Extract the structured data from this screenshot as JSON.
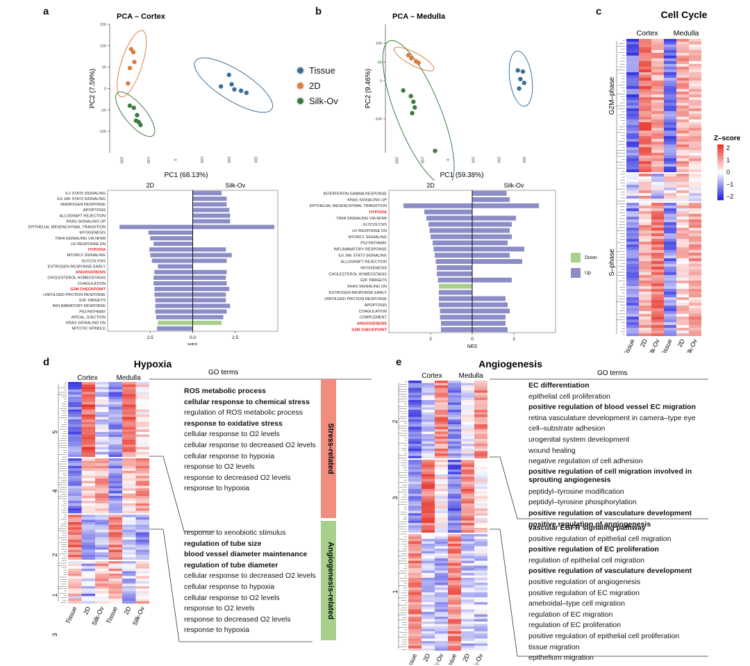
{
  "figure": {
    "panel_labels": [
      "a",
      "b",
      "c",
      "d",
      "e"
    ],
    "legend": {
      "items": [
        {
          "label": "Tissue",
          "color": "#3a6d97"
        },
        {
          "label": "2D",
          "color": "#e07a3c"
        },
        {
          "label": "Silk-Ov",
          "color": "#3b7b3d"
        }
      ]
    },
    "gsea_legend": {
      "items": [
        {
          "label": "Down",
          "color": "#a9cf8d"
        },
        {
          "label": "Up",
          "color": "#8c8cc6"
        }
      ]
    }
  },
  "chart_data": [
    {
      "id": "pca_cortex",
      "type": "scatter",
      "title": "PCA – Cortex",
      "xlabel": "PC1 (68.13%)",
      "ylabel": "PC2 (7.59%)",
      "xlim": [
        -240,
        330
      ],
      "ylim": [
        -150,
        150
      ],
      "xticks": [
        "-200",
        "-100",
        "0",
        "100",
        "200",
        "300"
      ],
      "yticks": [
        "150",
        "100",
        "50",
        "0",
        "-50",
        "-100"
      ],
      "series": [
        {
          "name": "Tissue",
          "points": [
            [
              175,
              5
            ],
            [
              205,
              32
            ],
            [
              215,
              10
            ],
            [
              225,
              -2
            ],
            [
              250,
              -5
            ],
            [
              270,
              -10
            ]
          ]
        },
        {
          "name": "2D",
          "points": [
            [
              -160,
              92
            ],
            [
              -152,
              85
            ],
            [
              -148,
              62
            ],
            [
              -165,
              48
            ],
            [
              -172,
              12
            ]
          ]
        },
        {
          "name": "Silk-Ov",
          "points": [
            [
              -165,
              -40
            ],
            [
              -150,
              -45
            ],
            [
              -138,
              -62
            ],
            [
              -142,
              -75
            ],
            [
              -132,
              -78
            ],
            [
              -125,
              -85
            ]
          ]
        }
      ]
    },
    {
      "id": "pca_medulla",
      "type": "scatter",
      "title": "PCA – Medulla",
      "xlabel": "PC1 (59.38%)",
      "ylabel": "PC2 (9.46%)",
      "xlim": [
        -240,
        360
      ],
      "ylim": [
        -190,
        150
      ],
      "xticks": [
        "-200",
        "-100",
        "0",
        "100",
        "200",
        "300"
      ],
      "yticks": [
        "100",
        "50",
        "0",
        "-100"
      ],
      "series": [
        {
          "name": "Tissue",
          "points": [
            [
              280,
              28
            ],
            [
              300,
              25
            ],
            [
              290,
              5
            ],
            [
              305,
              -5
            ],
            [
              285,
              -20
            ]
          ]
        },
        {
          "name": "2D",
          "points": [
            [
              -150,
              68
            ],
            [
              -138,
              60
            ],
            [
              -120,
              52
            ],
            [
              -110,
              48
            ]
          ]
        },
        {
          "name": "Silk-Ov",
          "points": [
            [
              -170,
              -25
            ],
            [
              -140,
              -40
            ],
            [
              -130,
              -55
            ],
            [
              -125,
              -70
            ],
            [
              -135,
              -85
            ],
            [
              -45,
              -185
            ]
          ]
        }
      ]
    },
    {
      "id": "gsea_cortex",
      "type": "bar",
      "orientation": "horizontal",
      "left_label": "2D",
      "right_label": "Silk-Ov",
      "xlabel": "NES",
      "xlim": [
        -5,
        5
      ],
      "xticks": [
        "2.5",
        "0.0",
        "2.5"
      ],
      "categories": [
        "IL2 STAT5 SIGNALING",
        "IL6 JAK STAT3 SIGNALING",
        "ANDROGEN RESPONSE",
        "APOPTOSIS",
        "ALLOGRAFT REJECTION",
        "KRAS SIGNALING UP",
        "EPITHELIAL MESENCHYMAL TRANSITION",
        "MYOGENESIS",
        "TNFA SIGNALING VIA NFKB",
        "UV RESPONSE DN",
        "HYPOXIA",
        "MTORC1 SIGNALING",
        "GLYCOLYSIS",
        "ESTROGEN RESPONSE EARLY",
        "ANGIOGENESIS",
        "CHOLESTEROL HOMEOSTASIS",
        "COAGULATION",
        "G2M CHECKPOINT",
        "UNFOLDED PROTEIN RESPONSE",
        "E2F TARGETS",
        "INFLAMMATORY RESPONSE",
        "P53 PATHWAY",
        "APICAL JUNCTION",
        "KRAS SIGNALING DN",
        "MITOTIC SPINDLE"
      ],
      "highlight": [
        "HYPOXIA",
        "ANGIOGENESIS",
        "G2M CHECKPOINT"
      ],
      "values": [
        1.7,
        2.0,
        2.0,
        2.15,
        2.2,
        2.2,
        4.8,
        -2.6,
        -2.5,
        -2.3,
        1.95,
        2.3,
        2.0,
        -2.05,
        2.0,
        1.95,
        2.0,
        2.15,
        1.95,
        1.95,
        2.2,
        2.0,
        1.8,
        1.7,
        -2.1
      ],
      "left_values": [
        0,
        0,
        0,
        0,
        0,
        0,
        -4.3,
        0,
        0,
        0,
        -2.55,
        -2.5,
        -2.4,
        0,
        -2.25,
        -2.3,
        -2.3,
        -2.25,
        -2.25,
        -2.2,
        -2.2,
        -2.2,
        -2.15,
        -2.05,
        0
      ],
      "down_rows": [
        "KRAS SIGNALING DN"
      ]
    },
    {
      "id": "gsea_medulla",
      "type": "bar",
      "orientation": "horizontal",
      "left_label": "2D",
      "right_label": "Silk-Ov",
      "xlabel": "NES",
      "xlim": [
        -4,
        4
      ],
      "xticks": [
        "2",
        "0",
        "2"
      ],
      "categories": [
        "INTERFERON GAMMA RESPONSE",
        "KRAS SIGNALING UP",
        "EPITHELIAL MESENCHYMAL TRANSITION",
        "HYPOXIA",
        "TNFA SIGNALING VIA NFKB",
        "GLYCOLYSIS",
        "UV RESPONSE DN",
        "MTORC1 SIGNALING",
        "P53 PATHWAY",
        "INFLAMMATORY RESPONSE",
        "IL6 JAK STAT3 SIGNALING",
        "ALLOGRAFT REJECTION",
        "MYOGENESIS",
        "CHOLESTEROL HOMEOSTASIS",
        "E2F TARGETS",
        "KRAS SIGNALING DN",
        "ESTROGEN RESPONSE EARLY",
        "UNFOLDED PROTEIN RESPONSE",
        "APOPTOSIS",
        "COAGULATION",
        "COMPLEMENT",
        "ANGIOGENESIS",
        "G2M CHECKPOINT"
      ],
      "highlight": [
        "HYPOXIA",
        "ANGIOGENESIS",
        "G2M CHECKPOINT"
      ],
      "left_values": [
        0,
        0,
        -3.3,
        -2.3,
        -2.2,
        -2.1,
        -2.05,
        -2.0,
        -1.9,
        -1.85,
        -1.8,
        -1.75,
        -1.7,
        -1.7,
        -1.65,
        -1.6,
        -1.6,
        -1.6,
        -1.6,
        -1.55,
        -1.55,
        -1.5,
        -1.5
      ],
      "right_values": [
        1.65,
        1.8,
        3.2,
        0,
        2.1,
        1.9,
        1.8,
        1.9,
        1.7,
        2.5,
        1.8,
        2.4,
        0,
        0,
        1.9,
        0,
        0,
        1.6,
        1.7,
        1.8,
        1.6,
        1.6,
        1.7
      ],
      "down_rows": [
        "KRAS SIGNALING DN"
      ]
    }
  ],
  "panel_c": {
    "title": "Cell Cycle",
    "group_labels": [
      "Cortex",
      "Medulla"
    ],
    "col_labels": [
      "Tissue",
      "2D",
      "Silk-Ov",
      "Tissue",
      "2D",
      "Silk-Ov"
    ],
    "row_labels": [
      "G2M–phase",
      "S–phase"
    ],
    "colorbar": {
      "title": "Z–score",
      "ticks": [
        "2",
        "1",
        "0",
        "−1",
        "−2"
      ],
      "low": "#2222dd",
      "mid": "#ffffff",
      "high": "#e8352a"
    }
  },
  "panel_d": {
    "title": "Hypoxia",
    "go_header": "GO terms",
    "group_labels": [
      "Cortex",
      "Medulla"
    ],
    "col_labels": [
      "Tissue",
      "2D",
      "Silk-Ov",
      "Tissue",
      "2D",
      "Silk-Ov"
    ],
    "cluster_labels": [
      "5",
      "4",
      "2",
      "1",
      "3"
    ],
    "categories": [
      {
        "label": "Stress-related",
        "color": "#f08d7e"
      },
      {
        "label": "Angiogenesis-related",
        "color": "#a9cf8d"
      }
    ],
    "terms_top": [
      {
        "text": "ROS metabolic process",
        "bold": true
      },
      {
        "text": "cellular response to chemical stress",
        "bold": true
      },
      {
        "text": "regulation of ROS metabolic process",
        "bold": false
      },
      {
        "text": "response to oxidative stress",
        "bold": true
      },
      {
        "text": "cellular response to O2 levels",
        "bold": false
      },
      {
        "text": "cellular response to decreased O2 levels",
        "bold": false
      },
      {
        "text": "cellular response to hypoxia",
        "bold": false
      },
      {
        "text": "response to O2 levels",
        "bold": false
      },
      {
        "text": "response to decreased O2 levels",
        "bold": false
      },
      {
        "text": "response to hypoxia",
        "bold": false
      }
    ],
    "terms_bottom": [
      {
        "text": "response to xenobiotic stimulus",
        "bold": false
      },
      {
        "text": "regulation of tube size",
        "bold": true
      },
      {
        "text": "blood vessel diameter maintenance",
        "bold": true
      },
      {
        "text": "regulation of tube diameter",
        "bold": true
      },
      {
        "text": "cellular response to decreased O2 levels",
        "bold": false
      },
      {
        "text": "cellular response to hypoxia",
        "bold": false
      },
      {
        "text": "cellular response to O2 levels",
        "bold": false
      },
      {
        "text": "response to O2 levels",
        "bold": false
      },
      {
        "text": "response to decreased O2 levels",
        "bold": false
      },
      {
        "text": "response to hypoxia",
        "bold": false
      }
    ]
  },
  "panel_e": {
    "title": "Angiogenesis",
    "go_header": "GO terms",
    "group_labels": [
      "Cortex",
      "Medulla"
    ],
    "col_labels": [
      "Tissue",
      "2D",
      "Silk-Ov",
      "Tissue",
      "2D",
      "Silk-Ov"
    ],
    "cluster_labels": [
      "2",
      "3",
      "1"
    ],
    "terms_top": [
      {
        "text": "EC differentiation",
        "bold": true
      },
      {
        "text": "epithelial cell proliferation",
        "bold": false
      },
      {
        "text": "positive regulation of blood vessel EC migration",
        "bold": true
      },
      {
        "text": "retina vasculature development in camera–type eye",
        "bold": false
      },
      {
        "text": "cell–substrate adhesion",
        "bold": false
      },
      {
        "text": "urogenital system development",
        "bold": false
      },
      {
        "text": "wound healing",
        "bold": false
      },
      {
        "text": "negative regulation of cell adhesion",
        "bold": false
      },
      {
        "text": "positive regulation of cell migration involved in sprouting angiogenesis",
        "bold": true,
        "wrap": true
      },
      {
        "text": "peptidyl–tyrosine modification",
        "bold": false
      },
      {
        "text": "peptidyl–tyrosine phosphorylation",
        "bold": false
      },
      {
        "text": "positive regulation of vasculature development",
        "bold": true
      },
      {
        "text": "positive regulation of angiogenesis",
        "bold": true
      }
    ],
    "terms_bottom": [
      {
        "text": "vascular EGFR signaling pathway",
        "bold": true
      },
      {
        "text": "positive regulation of epithelial cell migration",
        "bold": false
      },
      {
        "text": "positive regulation of EC proliferation",
        "bold": true
      },
      {
        "text": "regulation of epithelial cell migration",
        "bold": false
      },
      {
        "text": "positive regulation of vasculature development",
        "bold": true
      },
      {
        "text": "positive regulation of angiogenesis",
        "bold": false
      },
      {
        "text": "positive regulation of EC migration",
        "bold": false
      },
      {
        "text": "ameboidal–type cell migration",
        "bold": false
      },
      {
        "text": "regulation of EC migration",
        "bold": false
      },
      {
        "text": "regulation of EC proliferation",
        "bold": false
      },
      {
        "text": "positive regulation of epithelial cell proliferation",
        "bold": false
      },
      {
        "text": "tissue migration",
        "bold": false
      },
      {
        "text": "epithelium migration",
        "bold": false
      }
    ]
  }
}
